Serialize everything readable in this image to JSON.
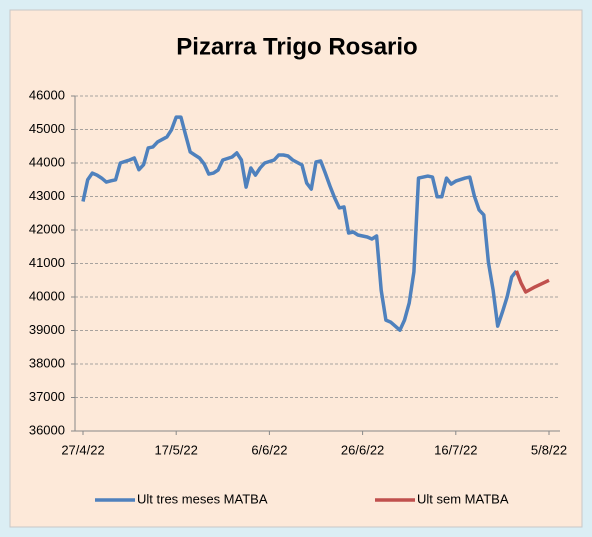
{
  "chart_data": {
    "type": "line",
    "title": "Pizarra Trigo Rosario",
    "series": [
      {
        "name": "Ult tres meses MATBA",
        "color": "#4f81bd",
        "x": [
          "2022-04-27",
          "2022-04-28",
          "2022-04-29",
          "2022-04-30",
          "2022-05-01",
          "2022-05-02",
          "2022-05-03",
          "2022-05-04",
          "2022-05-05",
          "2022-05-07",
          "2022-05-08",
          "2022-05-09",
          "2022-05-10",
          "2022-05-11",
          "2022-05-12",
          "2022-05-13",
          "2022-05-15",
          "2022-05-16",
          "2022-05-17",
          "2022-05-18",
          "2022-05-19",
          "2022-05-20",
          "2022-05-21",
          "2022-05-22",
          "2022-05-23",
          "2022-05-24",
          "2022-05-25",
          "2022-05-26",
          "2022-05-27",
          "2022-05-29",
          "2022-05-30",
          "2022-05-31",
          "2022-06-01",
          "2022-06-02",
          "2022-06-03",
          "2022-06-04",
          "2022-06-05",
          "2022-06-07",
          "2022-06-08",
          "2022-06-09",
          "2022-06-10",
          "2022-06-11",
          "2022-06-13",
          "2022-06-14",
          "2022-06-15",
          "2022-06-16",
          "2022-06-17",
          "2022-06-18",
          "2022-06-19",
          "2022-06-20",
          "2022-06-21",
          "2022-06-22",
          "2022-06-23",
          "2022-06-24",
          "2022-06-25",
          "2022-06-27",
          "2022-06-28",
          "2022-06-29",
          "2022-06-30",
          "2022-07-01",
          "2022-07-02",
          "2022-07-03",
          "2022-07-04",
          "2022-07-05",
          "2022-07-06",
          "2022-07-07",
          "2022-07-08",
          "2022-07-09",
          "2022-07-10",
          "2022-07-11",
          "2022-07-12",
          "2022-07-13",
          "2022-07-14",
          "2022-07-15",
          "2022-07-16",
          "2022-07-18",
          "2022-07-19",
          "2022-07-20",
          "2022-07-21",
          "2022-07-22",
          "2022-07-23",
          "2022-07-24",
          "2022-07-25",
          "2022-07-26",
          "2022-07-27",
          "2022-07-28",
          "2022-07-29"
        ],
        "values": [
          42850,
          43500,
          43700,
          43640,
          43550,
          43430,
          43470,
          43500,
          44000,
          44090,
          44150,
          43800,
          43950,
          44450,
          44480,
          44630,
          44780,
          44990,
          45370,
          45370,
          44850,
          44330,
          44240,
          44150,
          43970,
          43670,
          43700,
          43790,
          44090,
          44180,
          44300,
          44090,
          43280,
          43850,
          43640,
          43850,
          44000,
          44090,
          44240,
          44240,
          44210,
          44090,
          43940,
          43400,
          43220,
          44030,
          44060,
          43700,
          43310,
          42960,
          42660,
          42690,
          41910,
          41940,
          41850,
          41790,
          41730,
          41820,
          40200,
          39310,
          39250,
          39130,
          39010,
          39310,
          39820,
          40750,
          43550,
          43580,
          43610,
          43580,
          42990,
          42990,
          43550,
          43370,
          43460,
          43550,
          43580,
          43010,
          42600,
          42450,
          41040,
          40210,
          39130,
          39550,
          40000,
          40600,
          40780
        ]
      },
      {
        "name": "Ult sem MATBA",
        "color": "#c0504d",
        "x": [
          "2022-07-29",
          "2022-07-30",
          "2022-07-31",
          "2022-08-02",
          "2022-08-05"
        ],
        "values": [
          40780,
          40420,
          40150,
          40300,
          40500
        ]
      }
    ],
    "xlim": [
      "2022-04-27",
      "2022-08-05"
    ],
    "xticks": [
      {
        "value": "2022-04-27",
        "label": "27/4/22"
      },
      {
        "value": "2022-05-17",
        "label": "17/5/22"
      },
      {
        "value": "2022-06-06",
        "label": "6/6/22"
      },
      {
        "value": "2022-06-26",
        "label": "26/6/22"
      },
      {
        "value": "2022-07-16",
        "label": "16/7/22"
      },
      {
        "value": "2022-08-05",
        "label": "5/8/22"
      }
    ],
    "ylim": [
      36000,
      46000
    ],
    "yticks": [
      36000,
      37000,
      38000,
      39000,
      40000,
      41000,
      42000,
      43000,
      44000,
      45000,
      46000
    ],
    "grid": true,
    "legend": "bottom"
  }
}
